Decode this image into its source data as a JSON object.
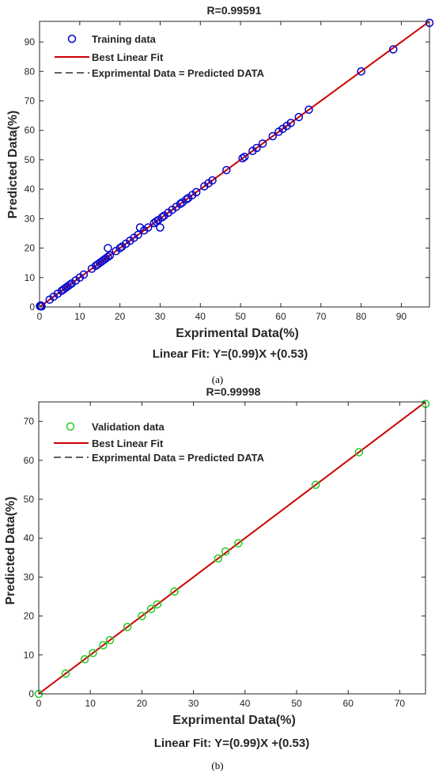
{
  "chart_data": [
    {
      "type": "scatter",
      "panel_label": "(a)",
      "title": "R=0.99591",
      "xlabel": "Exprimental Data(%)",
      "ylabel": "Predicted Data(%)",
      "fit_label": "Linear Fit: Y=(0.99)X +(0.53)",
      "xlim": [
        0,
        97
      ],
      "ylim": [
        0,
        97
      ],
      "xticks": [
        0,
        10,
        20,
        30,
        40,
        50,
        60,
        70,
        80,
        90
      ],
      "yticks": [
        0,
        10,
        20,
        30,
        40,
        50,
        60,
        70,
        80,
        90
      ],
      "grid": false,
      "legend_position": "top-left",
      "legend": [
        "Training data",
        "Best Linear Fit",
        "Exprimental Data = Predicted DATA"
      ],
      "marker_color": "#0000cc",
      "fit_color": "#cc0000",
      "fit_line": {
        "x": [
          0,
          97
        ],
        "y": [
          0,
          97
        ]
      },
      "series": [
        {
          "name": "Training data",
          "x": [
            0.1,
            0.3,
            0.5,
            2.5,
            3.5,
            4.5,
            5.5,
            6,
            6.5,
            7,
            7.5,
            8,
            9,
            10,
            11,
            13,
            14,
            14.5,
            15,
            15.5,
            16,
            16.5,
            17,
            17,
            17.5,
            19,
            20,
            20.5,
            21.5,
            22.5,
            23.5,
            24.5,
            25,
            26,
            27,
            28.5,
            29,
            29.5,
            30,
            30.5,
            31,
            32,
            33,
            34,
            35,
            35.5,
            36.5,
            37,
            38,
            39,
            41,
            42,
            43,
            46.5,
            50.5,
            51,
            53,
            54,
            55.5,
            58,
            59.5,
            60.5,
            61.5,
            62.5,
            64.5,
            67,
            80,
            88,
            97
          ],
          "y": [
            0.3,
            0.5,
            0.2,
            2.5,
            3.5,
            4.5,
            5.5,
            6,
            6.5,
            7,
            7.5,
            8,
            9,
            10,
            11,
            13,
            14,
            14.5,
            15,
            15.5,
            16,
            16.5,
            17,
            20,
            17.5,
            19,
            20,
            20.5,
            21.5,
            22.5,
            23.5,
            24.5,
            27,
            26,
            27,
            28.5,
            29,
            29.5,
            27,
            30.5,
            31,
            32,
            33,
            34,
            35,
            35.5,
            36.5,
            37,
            38,
            39,
            41,
            42,
            43,
            46.5,
            50.5,
            51,
            53,
            54,
            55.5,
            58,
            59.5,
            60.5,
            61.5,
            62.5,
            64.5,
            67,
            80,
            87.5,
            96.5
          ]
        }
      ]
    },
    {
      "type": "scatter",
      "panel_label": "(b)",
      "title": "R=0.99998",
      "xlabel": "Exprimental Data(%)",
      "ylabel": "Predicted Data(%)",
      "fit_label": "Linear Fit: Y=(0.99)X +(0.53)",
      "xlim": [
        0,
        75
      ],
      "ylim": [
        0,
        75
      ],
      "xticks": [
        0,
        10,
        20,
        30,
        40,
        50,
        60,
        70
      ],
      "yticks": [
        0,
        10,
        20,
        30,
        40,
        50,
        60,
        70
      ],
      "grid": false,
      "legend_position": "top-left",
      "legend": [
        "Validation data",
        "Best Linear Fit",
        "Exprimental Data = Predicted DATA"
      ],
      "marker_color": "#22cc22",
      "fit_color": "#cc0000",
      "fit_line": {
        "x": [
          0,
          75
        ],
        "y": [
          0,
          75
        ]
      },
      "series": [
        {
          "name": "Validation data",
          "x": [
            0,
            5.2,
            8.9,
            10.5,
            12.5,
            13.8,
            17.2,
            20,
            21.8,
            23,
            26.3,
            34.8,
            36.2,
            38.7,
            53.7,
            62.1,
            75
          ],
          "y": [
            0,
            5.2,
            8.9,
            10.5,
            12.5,
            13.8,
            17.2,
            20,
            21.8,
            23,
            26.3,
            34.8,
            36.6,
            38.7,
            53.7,
            62.1,
            74.5
          ]
        }
      ]
    }
  ]
}
